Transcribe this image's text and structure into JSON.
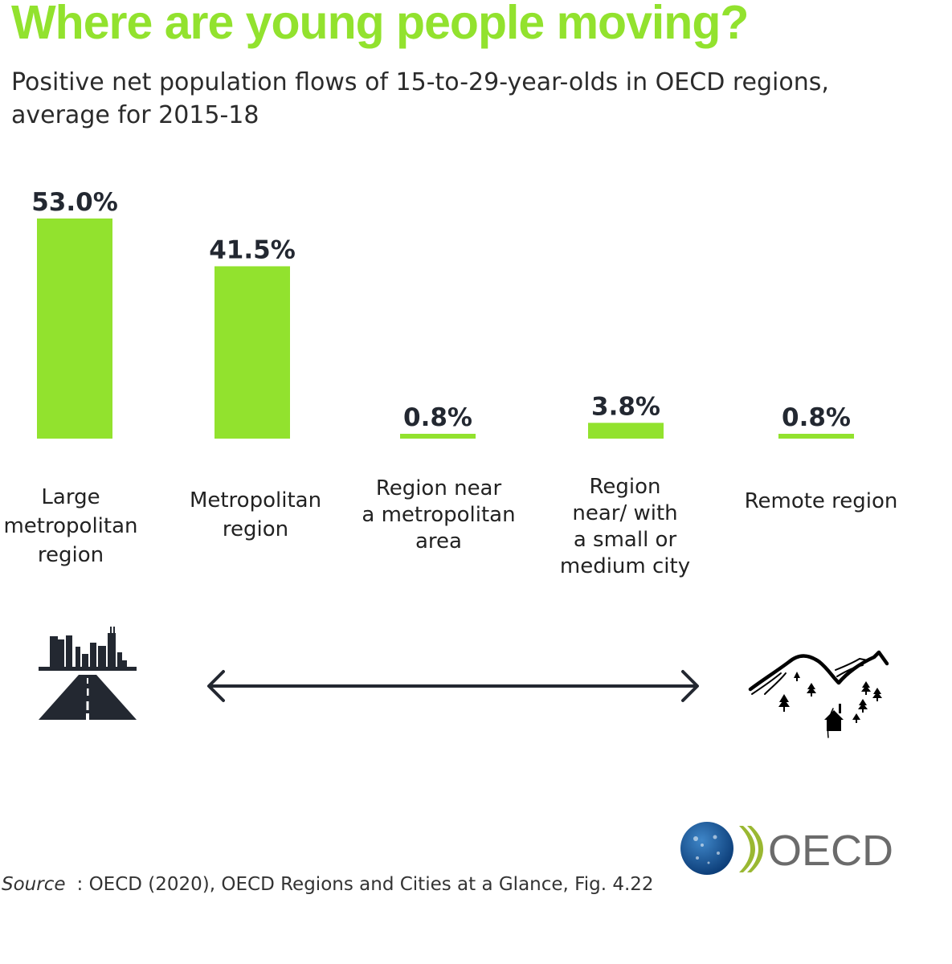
{
  "title": "Where are young people moving?",
  "subtitle": "Positive net population flows of 15-to-29-year-olds in OECD regions, average for 2015-18",
  "colors": {
    "accent": "#92e22e",
    "text": "#232831"
  },
  "chart_data": {
    "type": "bar",
    "title": "Where are young people moving?",
    "subtitle": "Positive net population flows of 15-to-29-year-olds in OECD regions, average for 2015-18",
    "categories": [
      "Large metropolitan region",
      "Metropolitan region",
      "Region near a metropolitan area",
      "Region near/ with a small or medium city",
      "Remote region"
    ],
    "values": [
      53.0,
      41.5,
      0.8,
      3.8,
      0.8
    ],
    "value_labels": [
      "53.0%",
      "41.5%",
      "0.8%",
      "3.8%",
      "0.8%"
    ],
    "unit": "%",
    "xlabel": "",
    "ylabel": "",
    "ylim": [
      0,
      53.0
    ],
    "grid": false
  },
  "category_labels": {
    "c1": [
      "Large",
      "metropolitan",
      "region"
    ],
    "c2": [
      "Metropolitan",
      "region"
    ],
    "c3": [
      "Region near",
      "a metropolitan",
      "area"
    ],
    "c4": [
      "Region",
      "near/ with",
      "a small or",
      "medium city"
    ],
    "c5": [
      "Remote region"
    ]
  },
  "icons": {
    "left": "city-road-icon",
    "right": "mountain-village-icon",
    "arrow": "double-arrow-icon"
  },
  "logo": {
    "text": "OECD"
  },
  "source": {
    "label": "Source",
    "text": ": OECD (2020), OECD Regions and Cities at a Glance, Fig. 4.22"
  }
}
